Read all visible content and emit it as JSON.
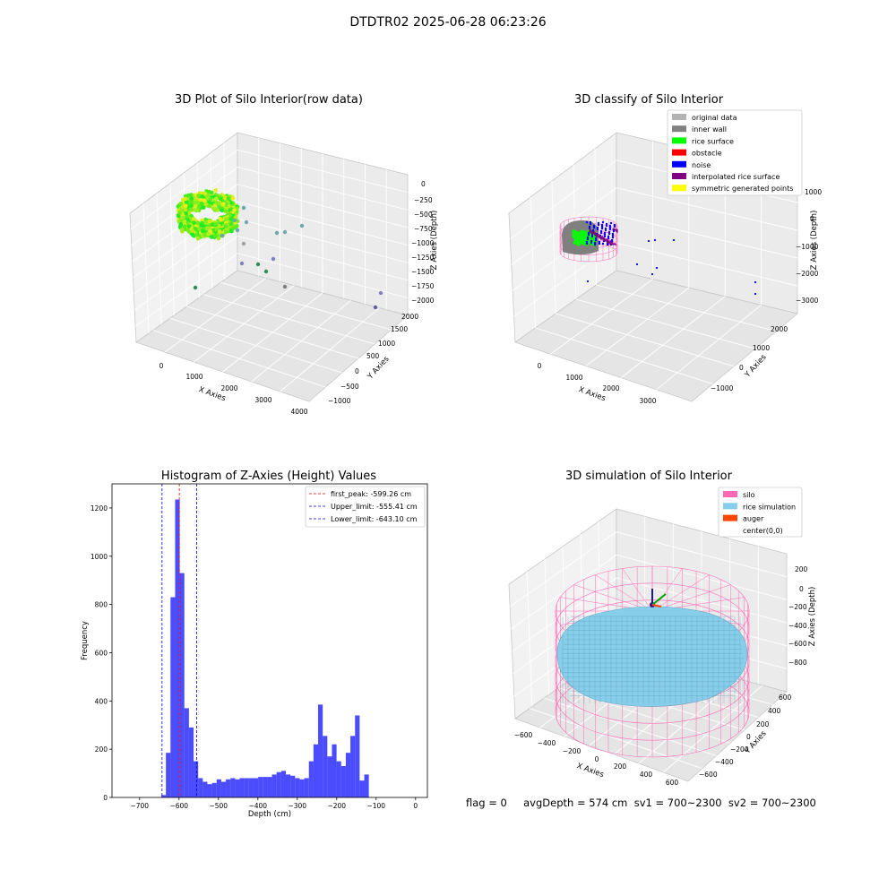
{
  "figure": {
    "suptitle": "DTDTR02 2025-06-28 06:23:26",
    "footer": "flag = 0     avgDepth = 574 cm  sv1 = 700~2300  sv2 = 700~2300"
  },
  "panels": {
    "p1": {
      "title": "3D Plot of Silo Interior(row data)",
      "xlabel": "X Axies",
      "ylabel": "Y Axies",
      "zlabel": "Z Axies (Depth)",
      "xticks": [
        "0",
        "1000",
        "2000",
        "3000",
        "4000"
      ],
      "yticks": [
        "−1000",
        "−500",
        "0",
        "500",
        "1000",
        "1500",
        "2000"
      ],
      "zticks": [
        "0",
        "−250",
        "−500",
        "−750",
        "−1000",
        "−1250",
        "−1500",
        "−1750",
        "−2000"
      ]
    },
    "p2": {
      "title": "3D classify of Silo Interior",
      "xlabel": "X Axies",
      "ylabel": "Y Axies",
      "zlabel": "Z Axies (Depth)",
      "xticks": [
        "0",
        "1000",
        "2000",
        "3000"
      ],
      "yticks": [
        "−1000",
        "0",
        "1000",
        "2000"
      ],
      "zticks": [
        "1000",
        "0",
        "−1000",
        "−2000",
        "−3000"
      ],
      "legend": [
        {
          "label": "original data",
          "color": "#b3b3b3"
        },
        {
          "label": "inner wall",
          "color": "#808080"
        },
        {
          "label": "rice surface",
          "color": "#00ff00"
        },
        {
          "label": "obstacle",
          "color": "#ff0000"
        },
        {
          "label": "noise",
          "color": "#0000ff"
        },
        {
          "label": "interpolated rice surface",
          "color": "#800080"
        },
        {
          "label": "symmetric generated points",
          "color": "#ffff00"
        }
      ]
    },
    "p4": {
      "title": "3D simulation of Silo Interior",
      "xlabel": "X Axies",
      "ylabel": "Y Axies",
      "zlabel": "Z Axies (Depth)",
      "xticks": [
        "−600",
        "−400",
        "−200",
        "0",
        "200",
        "400",
        "600"
      ],
      "yticks": [
        "−600",
        "−400",
        "−200",
        "0",
        "200",
        "400",
        "600"
      ],
      "zticks": [
        "200",
        "0",
        "−200",
        "−400",
        "−600",
        "−800"
      ],
      "legend": [
        {
          "label": "silo",
          "color": "#ff69b4"
        },
        {
          "label": "rice simulation",
          "color": "#87ceeb"
        },
        {
          "label": "auger",
          "color": "#ff4500"
        },
        {
          "label": "center(0,0)",
          "color": "#ffffff"
        }
      ]
    }
  },
  "chart_data": [
    {
      "type": "scatter",
      "title": "3D Plot of Silo Interior(row data)",
      "xlabel": "X Axies",
      "ylabel": "Y Axies",
      "zlabel": "Z Axies (Depth)",
      "xlim": [
        -500,
        4000
      ],
      "ylim": [
        -1000,
        2000
      ],
      "zlim": [
        -2000,
        0
      ],
      "grid": true
    },
    {
      "type": "scatter",
      "title": "3D classify of Silo Interior",
      "xlabel": "X Axies",
      "ylabel": "Y Axies",
      "zlabel": "Z Axies (Depth)",
      "xlim": [
        -500,
        3500
      ],
      "ylim": [
        -1000,
        2000
      ],
      "zlim": [
        -3000,
        1000
      ],
      "legend_position": "top-right",
      "grid": true
    },
    {
      "type": "bar",
      "title": "Histogram of Z-Axies (Height) Values",
      "xlabel": "Depth (cm)",
      "ylabel": "Frequency",
      "xlim": [
        -770,
        30
      ],
      "ylim": [
        0,
        1300
      ],
      "xticks": [
        -700,
        -600,
        -500,
        -400,
        -300,
        -200,
        -100,
        0
      ],
      "yticks": [
        0,
        200,
        400,
        600,
        800,
        1000,
        1200
      ],
      "bin_width": 11.7,
      "bin_start": -645,
      "values": [
        10,
        185,
        830,
        1235,
        930,
        370,
        290,
        150,
        80,
        65,
        55,
        60,
        75,
        65,
        75,
        80,
        75,
        80,
        80,
        80,
        80,
        85,
        85,
        85,
        95,
        105,
        110,
        95,
        90,
        80,
        75,
        80,
        150,
        220,
        385,
        255,
        170,
        220,
        150,
        130,
        185,
        255,
        340,
        70,
        95
      ],
      "vlines": [
        {
          "label": "first_peak: -599.26 cm",
          "x": -599.26,
          "color": "#ff0000"
        },
        {
          "label": "Upper_limit: -555.41 cm",
          "x": -555.41,
          "color": "#0000ff"
        },
        {
          "label": "Lower_limit: -643.10 cm",
          "x": -643.1,
          "color": "#0000ff"
        }
      ],
      "bar_color": "#0000ff",
      "legend_position": "top-right"
    },
    {
      "type": "scatter",
      "title": "3D simulation of Silo Interior",
      "xlabel": "X Axies",
      "ylabel": "Y Axies",
      "zlabel": "Z Axies (Depth)",
      "xlim": [
        -650,
        650
      ],
      "ylim": [
        -650,
        650
      ],
      "zlim": [
        -900,
        300
      ],
      "legend_position": "top-right",
      "grid": true
    }
  ]
}
